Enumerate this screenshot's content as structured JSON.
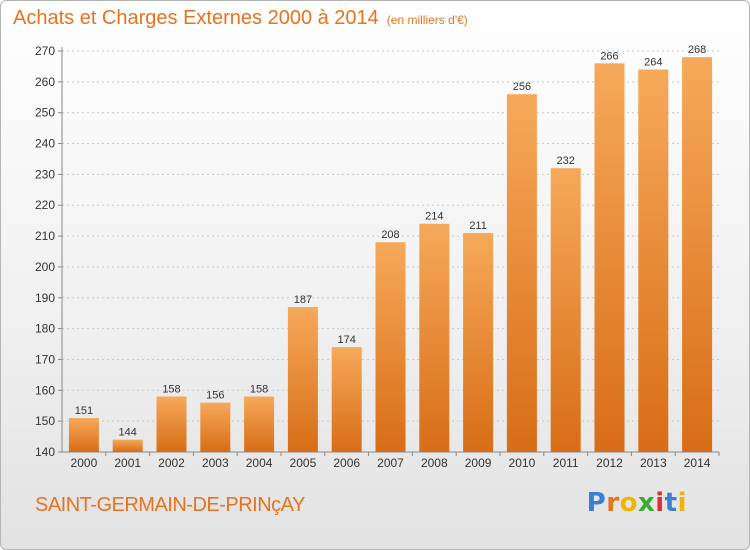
{
  "title": "Achats et Charges Externes 2000 à 2014",
  "unit": "(en milliers d'€)",
  "commune": "SAINT-GERMAIN-DE-PRINçAY",
  "brand": {
    "text": "Proxiti",
    "letter_colors": [
      "#3a7fd6",
      "#e8731f",
      "#f0b400",
      "#3aaa35",
      "#e03030",
      "#3a7fd6",
      "#f0b400"
    ]
  },
  "colors": {
    "bar_top": "#f6a95a",
    "bar_bottom": "#d86d16",
    "accent": "#e8731f"
  },
  "chart_data": {
    "type": "bar",
    "categories": [
      "2000",
      "2001",
      "2002",
      "2003",
      "2004",
      "2005",
      "2006",
      "2007",
      "2008",
      "2009",
      "2010",
      "2011",
      "2012",
      "2013",
      "2014"
    ],
    "values": [
      151,
      144,
      158,
      156,
      158,
      187,
      174,
      208,
      214,
      211,
      256,
      232,
      266,
      264,
      268
    ],
    "ylim": [
      140,
      270
    ],
    "yticks": [
      140,
      150,
      160,
      170,
      180,
      190,
      200,
      210,
      220,
      230,
      240,
      250,
      260,
      270
    ],
    "grid": true,
    "data_labels": true
  }
}
